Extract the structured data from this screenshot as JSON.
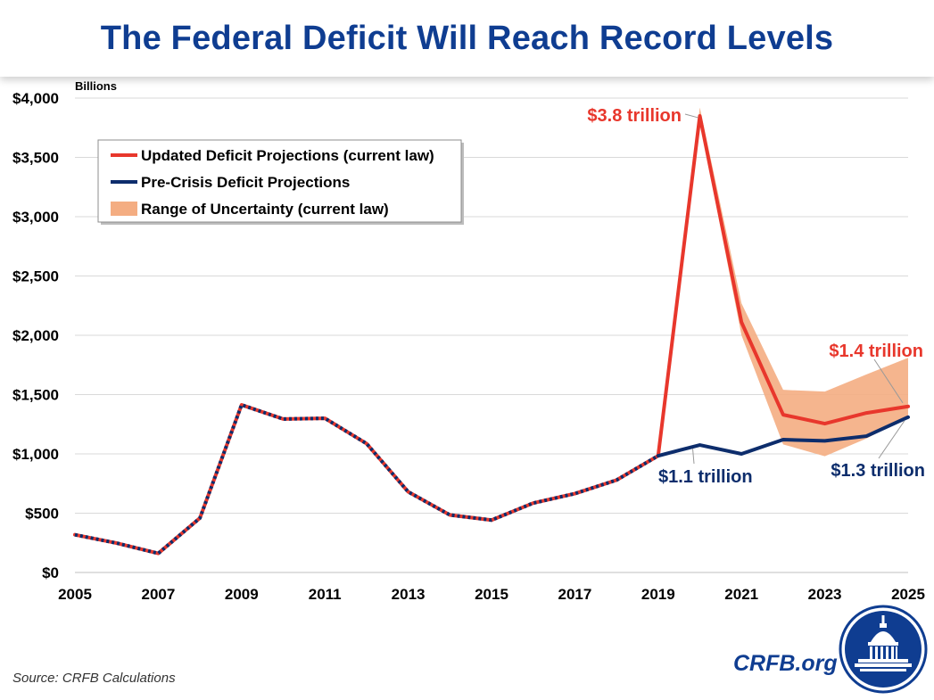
{
  "page": {
    "title": "The Federal Deficit Will Reach Record Levels",
    "source": "Source: CRFB Calculations",
    "brand": "CRFB.org"
  },
  "colors": {
    "updated": "#e8372c",
    "precrisis": "#0d2d6c",
    "uncertainty": "#f4ad82",
    "title": "#0f3d91",
    "grid": "#d9d9d9"
  },
  "icons": {
    "logo": "capitol-dome-icon"
  },
  "chart_data": {
    "type": "line",
    "title": "",
    "xlabel": "",
    "ylabel": "Billions",
    "xlim": [
      2005,
      2025
    ],
    "ylim": [
      0,
      4000
    ],
    "y_ticks": [
      0,
      500,
      1000,
      1500,
      2000,
      2500,
      3000,
      3500,
      4000
    ],
    "y_tick_labels": [
      "$0",
      "$500",
      "$1,000",
      "$1,500",
      "$2,000",
      "$2,500",
      "$3,000",
      "$3,500",
      "$4,000"
    ],
    "x_ticks": [
      2005,
      2007,
      2009,
      2011,
      2013,
      2015,
      2017,
      2019,
      2021,
      2023,
      2025
    ],
    "x_tick_labels": [
      "2005",
      "2007",
      "2009",
      "2011",
      "2013",
      "2015",
      "2017",
      "2019",
      "2021",
      "2023",
      "2025"
    ],
    "grid": "horizontal",
    "legend_position": "top-left",
    "x": [
      2005,
      2006,
      2007,
      2008,
      2009,
      2010,
      2011,
      2012,
      2013,
      2014,
      2015,
      2016,
      2017,
      2018,
      2019,
      2020,
      2021,
      2022,
      2023,
      2024,
      2025
    ],
    "series": [
      {
        "name": "Updated Deficit Projections (current law)",
        "key": "updated",
        "values": [
          318,
          248,
          161,
          459,
          1413,
          1294,
          1300,
          1087,
          680,
          485,
          442,
          585,
          665,
          779,
          984,
          3850,
          2110,
          1330,
          1255,
          1345,
          1400
        ]
      },
      {
        "name": "Pre-Crisis Deficit Projections",
        "key": "precrisis",
        "values": [
          318,
          248,
          161,
          459,
          1413,
          1294,
          1300,
          1087,
          680,
          485,
          442,
          585,
          665,
          779,
          984,
          1075,
          1000,
          1120,
          1110,
          1150,
          1310
        ]
      }
    ],
    "band": {
      "name": "Range of Uncertainty (current law)",
      "x": [
        2019,
        2020,
        2021,
        2022,
        2023,
        2024,
        2025
      ],
      "low": [
        984,
        3800,
        2000,
        1080,
        980,
        1130,
        1310
      ],
      "high": [
        984,
        3920,
        2270,
        1540,
        1525,
        1670,
        1810
      ]
    },
    "annotations": [
      {
        "text": "$3.8 trillion",
        "series": "updated",
        "x": 2020,
        "y": 3850
      },
      {
        "text": "$1.4 trillion",
        "series": "updated",
        "x": 2025,
        "y": 1400
      },
      {
        "text": "$1.1 trillion",
        "series": "precrisis",
        "x": 2020,
        "y": 1075
      },
      {
        "text": "$1.3 trillion",
        "series": "precrisis",
        "x": 2025,
        "y": 1310
      }
    ]
  }
}
